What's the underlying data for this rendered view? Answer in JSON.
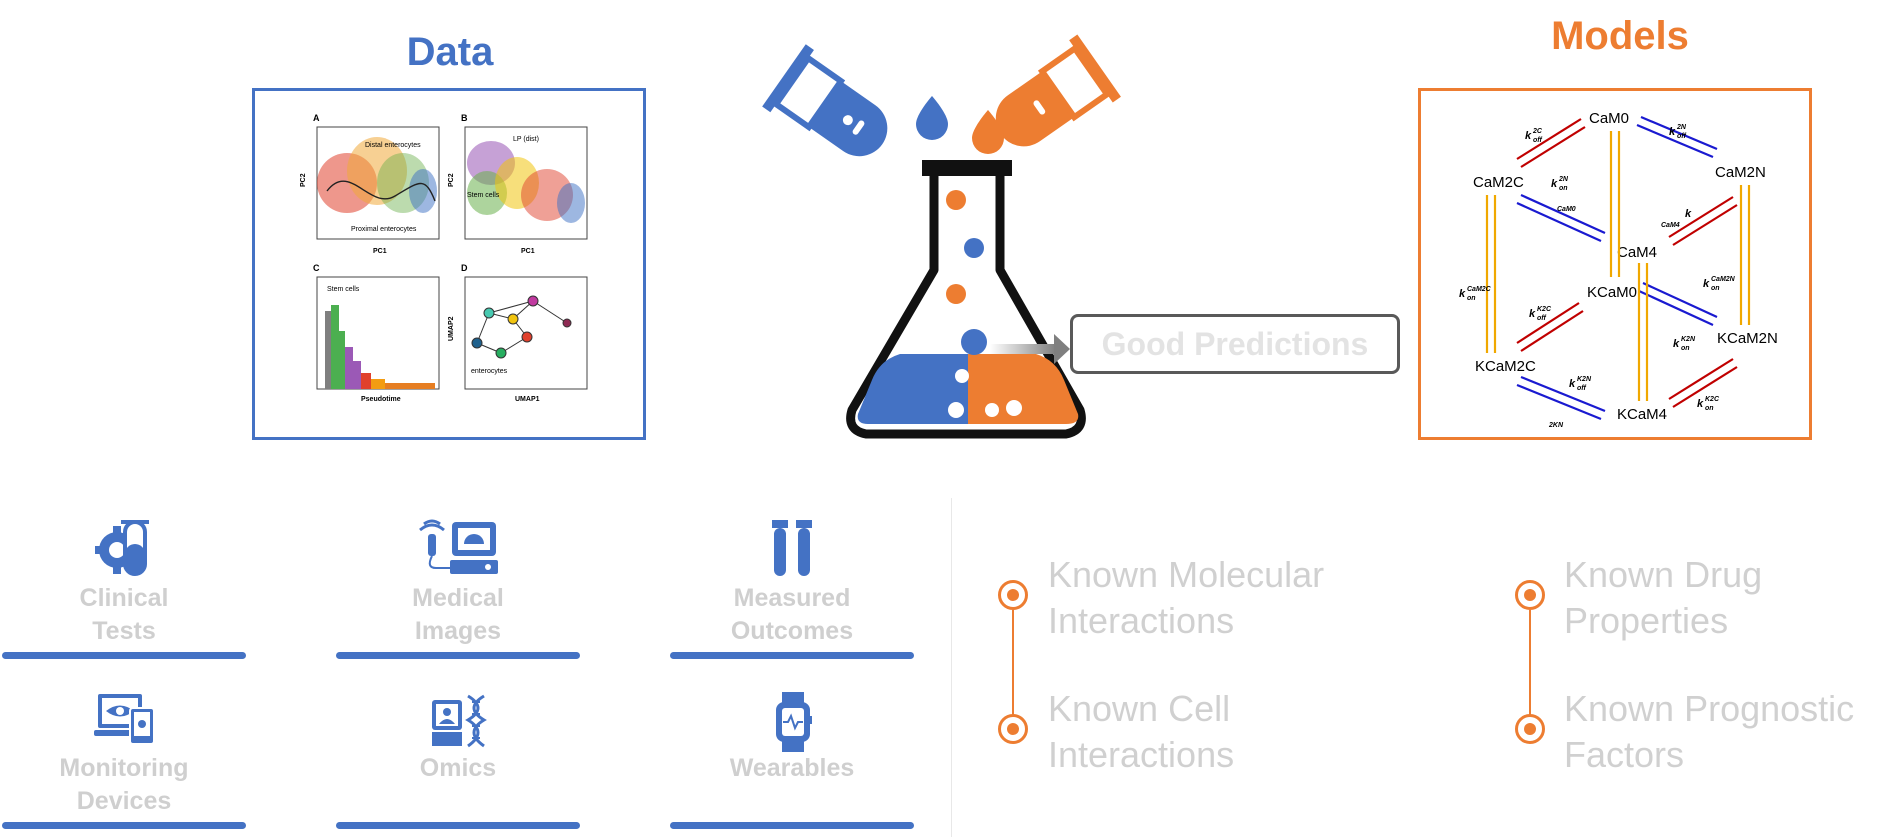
{
  "titles": {
    "data": "Data",
    "models": "Models"
  },
  "prediction_label": "Good Predictions",
  "data_sources": [
    {
      "label_1": "Clinical",
      "label_2": "Tests"
    },
    {
      "label_1": "Medical",
      "label_2": "Images"
    },
    {
      "label_1": "Measured",
      "label_2": "Outcomes"
    },
    {
      "label_1": "Monitoring",
      "label_2": "Devices"
    },
    {
      "label_1": "Omics",
      "label_2": ""
    },
    {
      "label_1": "Wearables",
      "label_2": ""
    }
  ],
  "knowledge": [
    {
      "line1": "Known Molecular",
      "line2": "Interactions"
    },
    {
      "line1": "Known Cell",
      "line2": "Interactions"
    },
    {
      "line1": "Known Drug",
      "line2": "Properties"
    },
    {
      "line1": "Known Prognostic",
      "line2": "Factors"
    }
  ],
  "data_figure": {
    "panels": [
      "A",
      "B",
      "C",
      "D"
    ],
    "a_label": "Distal enterocytes",
    "a_label2": "Proximal enterocytes",
    "a_xlabel": "PC1",
    "a_ylabel": "PC2",
    "b_xlabel": "PC1",
    "b_ylabel": "PC2",
    "b_stem": "Stem cells",
    "b_lp": "LP (dist)",
    "c_xlabel": "Pseudotime",
    "c_stem": "Stem cells",
    "d_xlabel": "UMAP1",
    "d_ylabel": "UMAP2",
    "d_label": "enterocytes"
  },
  "model_figure": {
    "states": [
      "CaM0",
      "CaM2C",
      "CaM2N",
      "CaM4",
      "KCaM0",
      "KCaM2C",
      "KCaM2N",
      "KCaM4"
    ],
    "rates": [
      "k",
      "off",
      "on",
      "2C",
      "2N",
      "CaM0",
      "K2C",
      "K2N",
      "2KN",
      "CaM2C",
      "CaM2N",
      "CaM4"
    ]
  },
  "colors": {
    "blue": "#4472c4",
    "orange": "#ed7d31",
    "grey_text": "#cfcfcf",
    "dark": "#000000",
    "red": "#c00000",
    "navy": "#0000c0",
    "gold": "#f0a800"
  }
}
